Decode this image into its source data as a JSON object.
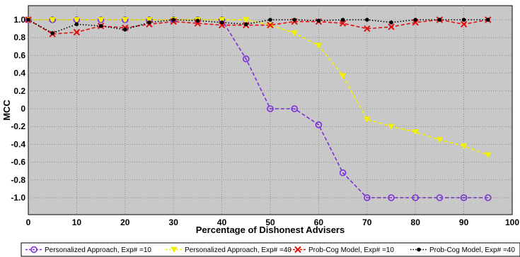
{
  "chart_data": {
    "type": "line",
    "title": "",
    "xlabel": "Percentage of Dishonest Advisers",
    "ylabel": "MCC",
    "xlim": [
      0,
      100
    ],
    "ylim": [
      -1.2,
      1.1
    ],
    "x_ticks": [
      0,
      10,
      20,
      30,
      40,
      50,
      60,
      70,
      80,
      90,
      100
    ],
    "y_ticks": [
      1.0,
      0.8,
      0.6,
      0.4,
      0.2,
      0,
      -0.2,
      -0.4,
      -0.6,
      -0.8,
      -1.0
    ],
    "y_tick_labels": [
      "1.0",
      "0.8",
      "0.6",
      "0.4",
      "0.2",
      "0",
      "-0.2",
      "-0.4",
      "-0.6",
      "-0.8",
      "-1.0"
    ],
    "grid": true,
    "plot_background": "#c8c8c8",
    "legend_position": "bottom",
    "x": [
      0,
      5,
      10,
      15,
      20,
      25,
      30,
      35,
      40,
      45,
      50,
      55,
      60,
      65,
      70,
      75,
      80,
      85,
      90,
      95
    ],
    "series": [
      {
        "name": "Personalized Approach, Exp# =10",
        "color": "#7b2fd6",
        "marker": "circle",
        "values": [
          1.0,
          1.0,
          1.0,
          1.0,
          1.0,
          1.0,
          1.0,
          1.0,
          1.0,
          0.56,
          0.0,
          0.0,
          -0.18,
          -0.72,
          -1.0,
          -1.0,
          -1.0,
          -1.0,
          -1.0,
          -1.0
        ]
      },
      {
        "name": "Personalized Approach, Exp# =40",
        "color": "#f0f000",
        "marker": "triangle-down",
        "values": [
          1.0,
          1.0,
          1.0,
          1.0,
          1.0,
          1.0,
          1.0,
          1.0,
          1.0,
          1.0,
          0.94,
          0.85,
          0.71,
          0.37,
          -0.12,
          -0.2,
          -0.26,
          -0.35,
          -0.42,
          -0.52
        ]
      },
      {
        "name": "Prob-Cog Model, Exp# =10",
        "color": "#e01010",
        "marker": "x",
        "values": [
          1.0,
          0.84,
          0.86,
          0.93,
          0.91,
          0.95,
          0.98,
          0.96,
          0.94,
          0.94,
          0.94,
          0.98,
          0.98,
          0.96,
          0.9,
          0.92,
          0.97,
          1.0,
          0.95,
          1.0
        ]
      },
      {
        "name": "Prob-Cog Model, Exp# =40",
        "color": "#000000",
        "marker": "dot",
        "values": [
          1.0,
          0.85,
          0.95,
          0.93,
          0.89,
          0.97,
          1.0,
          0.99,
          0.97,
          0.95,
          1.0,
          1.0,
          0.99,
          1.0,
          1.0,
          0.97,
          1.0,
          1.0,
          1.0,
          1.0
        ]
      }
    ]
  }
}
